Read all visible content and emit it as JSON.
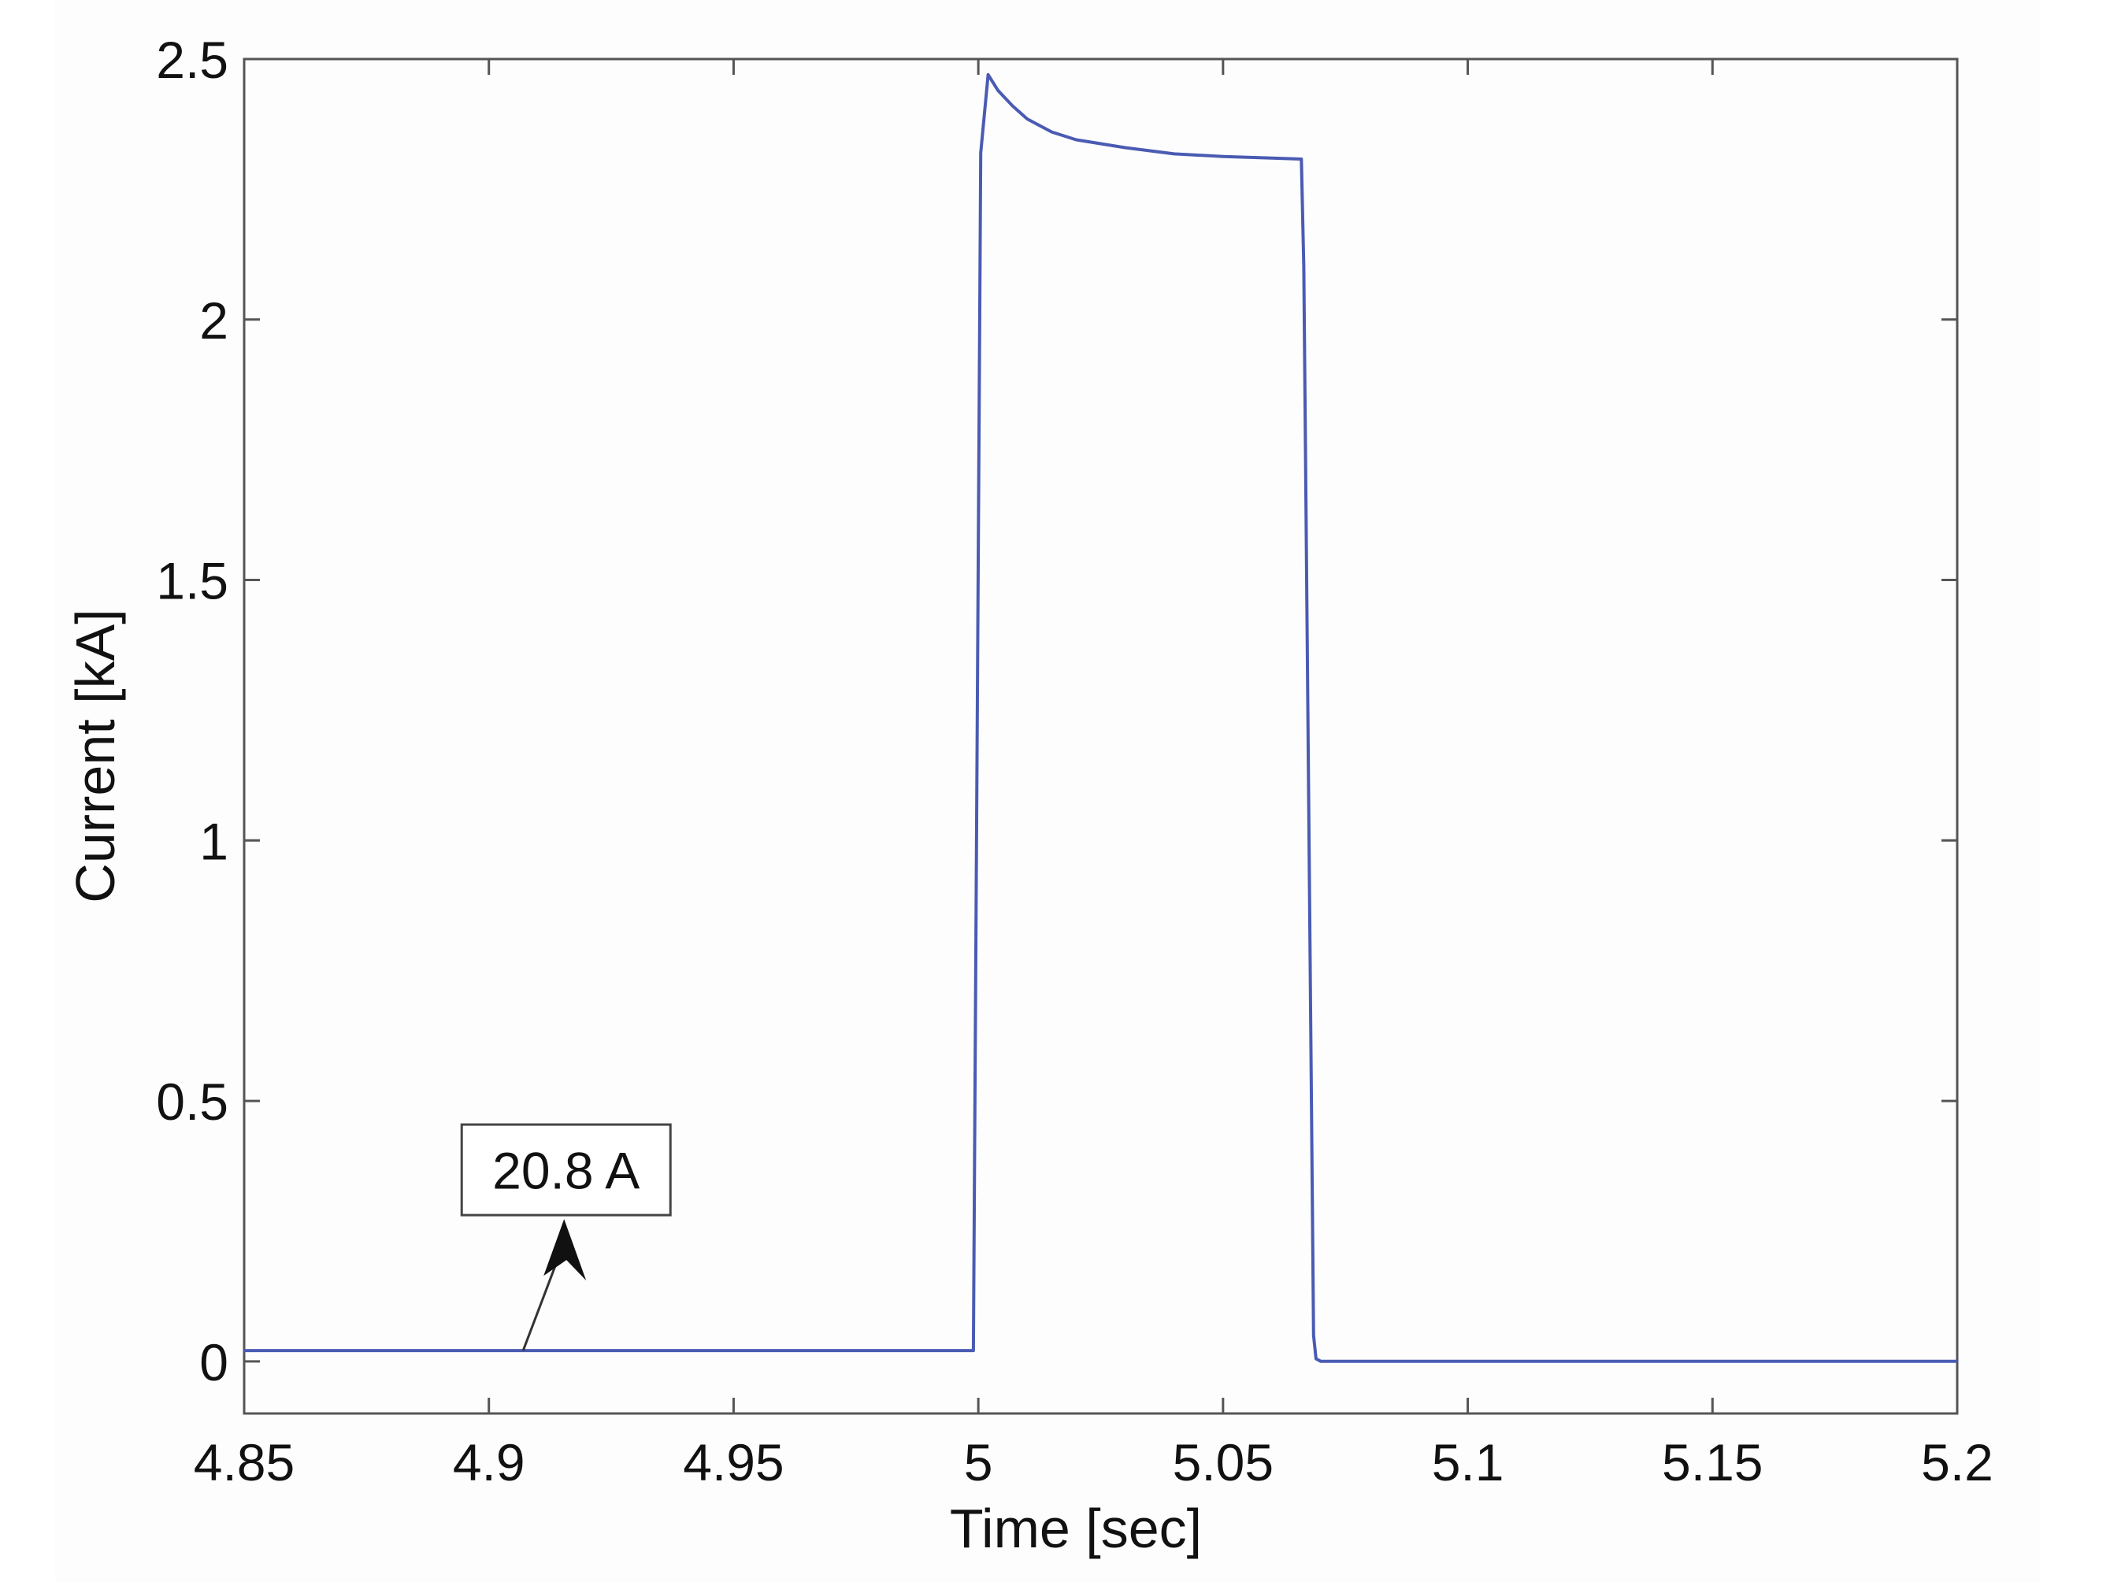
{
  "chart_data": {
    "type": "line",
    "title": "",
    "xlabel": "Time [sec]",
    "ylabel": "Current [kA]",
    "xlim": [
      4.85,
      5.2
    ],
    "ylim": [
      -0.1,
      2.5
    ],
    "xticks": [
      4.85,
      4.9,
      4.95,
      5.0,
      5.05,
      5.1,
      5.15,
      5.2
    ],
    "xtick_labels": [
      "4.85",
      "4.9",
      "4.95",
      "5",
      "5.05",
      "5.1",
      "5.15",
      "5.2"
    ],
    "yticks": [
      0,
      0.5,
      1.0,
      1.5,
      2.0,
      2.5
    ],
    "ytick_labels": [
      "0",
      "0.5",
      "1",
      "1.5",
      "2",
      "2.5"
    ],
    "grid": false,
    "line_color": "#4a5bb3",
    "series": [
      {
        "x": [
          4.85,
          4.9,
          4.95,
          4.999,
          5.0005,
          5.002,
          5.004,
          5.007,
          5.01,
          5.015,
          5.02,
          5.03,
          5.04,
          5.05,
          5.06,
          5.066,
          5.0665,
          5.0685,
          5.069,
          5.07,
          5.1,
          5.15,
          5.2
        ],
        "y": [
          0.0208,
          0.0208,
          0.0208,
          0.0208,
          2.32,
          2.47,
          2.44,
          2.41,
          2.385,
          2.36,
          2.345,
          2.33,
          2.318,
          2.313,
          2.31,
          2.308,
          2.1,
          0.05,
          0.005,
          0.0,
          0.0,
          0.0,
          0.0
        ]
      }
    ],
    "annotations": [
      {
        "text": "20.8 A",
        "x": 4.907,
        "y": 0.0208
      }
    ]
  }
}
